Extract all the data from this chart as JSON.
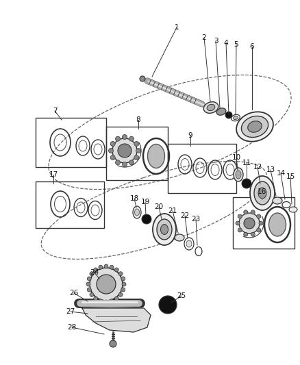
{
  "bg_color": "#ffffff",
  "fig_width": 4.38,
  "fig_height": 5.33,
  "dpi": 100,
  "line_color": "#333333",
  "dark_gray": "#555555",
  "mid_gray": "#888888",
  "light_gray": "#cccccc",
  "black": "#111111"
}
